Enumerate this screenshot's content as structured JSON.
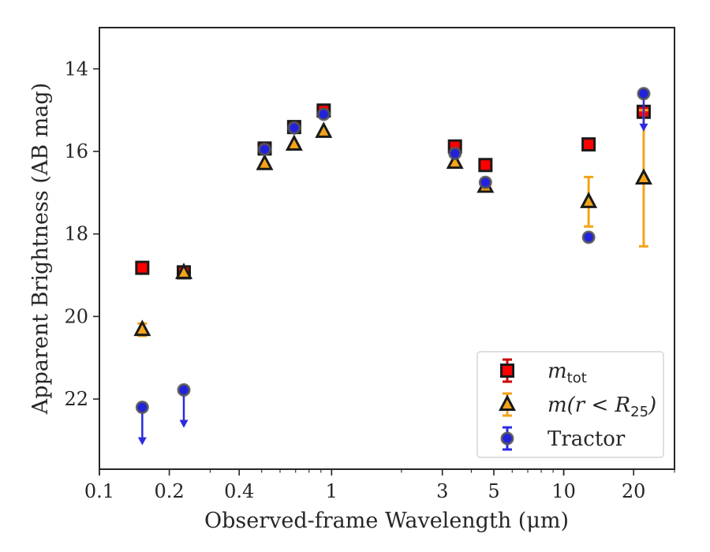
{
  "chart_data": {
    "type": "scatter",
    "title": "",
    "xlabel": "Observed-frame Wavelength (μm)",
    "ylabel": "Apparent Brightness (AB mag)",
    "xscale": "log",
    "xlim": [
      0.1,
      30
    ],
    "ylim": [
      23.7,
      13.0
    ],
    "y_inverted": true,
    "grid": false,
    "legend_position": "lower-right",
    "x_ticks": [
      {
        "value": 0.1,
        "label": "0.1"
      },
      {
        "value": 0.2,
        "label": "0.2"
      },
      {
        "value": 0.4,
        "label": "0.4"
      },
      {
        "value": 1,
        "label": "1"
      },
      {
        "value": 3,
        "label": "3"
      },
      {
        "value": 5,
        "label": "5"
      },
      {
        "value": 10,
        "label": "10"
      },
      {
        "value": 20,
        "label": "20"
      }
    ],
    "y_ticks": [
      {
        "value": 14,
        "label": "14"
      },
      {
        "value": 16,
        "label": "16"
      },
      {
        "value": 18,
        "label": "18"
      },
      {
        "value": 20,
        "label": "20"
      },
      {
        "value": 22,
        "label": "22"
      }
    ],
    "series": [
      {
        "name": "m_tot",
        "label_main": "m",
        "label_sub": "tot",
        "marker": "square",
        "color": "#ff0000",
        "edge_color": "#1a1a1a",
        "error_color": "#cc0000",
        "points": [
          {
            "x": 0.153,
            "y": 18.82
          },
          {
            "x": 0.231,
            "y": 18.93
          },
          {
            "x": 0.515,
            "y": 15.93
          },
          {
            "x": 0.69,
            "y": 15.41
          },
          {
            "x": 0.925,
            "y": 15.01
          },
          {
            "x": 3.4,
            "y": 15.88
          },
          {
            "x": 4.6,
            "y": 16.33
          },
          {
            "x": 12.8,
            "y": 15.83
          },
          {
            "x": 22.1,
            "y": 15.04
          }
        ]
      },
      {
        "name": "m(r < R25)",
        "label_main": "m(r < R",
        "label_sub": "25",
        "label_end": ")",
        "marker": "triangle",
        "color": "#f5a31a",
        "edge_color": "#1a1a1a",
        "error_color": "#f5a31a",
        "points": [
          {
            "x": 0.153,
            "y": 20.32,
            "err": 0.15
          },
          {
            "x": 0.231,
            "y": 18.94,
            "err": 0.0
          },
          {
            "x": 0.515,
            "y": 16.3,
            "err": 0.0
          },
          {
            "x": 0.69,
            "y": 15.83,
            "err": 0.0
          },
          {
            "x": 0.925,
            "y": 15.52,
            "err": 0.0
          },
          {
            "x": 3.4,
            "y": 16.27,
            "err": 0.0
          },
          {
            "x": 4.6,
            "y": 16.85,
            "err": 0.0
          },
          {
            "x": 12.8,
            "y": 17.22,
            "err": 0.6
          },
          {
            "x": 22.1,
            "y": 16.65,
            "err": 1.65
          }
        ]
      },
      {
        "name": "Tractor",
        "marker": "circle",
        "color": "#2222dd",
        "edge_color": "#555555",
        "error_color": "#2b2be0",
        "points": [
          {
            "x": 0.153,
            "y": 22.2,
            "upper_limit": true
          },
          {
            "x": 0.231,
            "y": 21.78,
            "upper_limit": true
          },
          {
            "x": 0.515,
            "y": 15.95
          },
          {
            "x": 0.69,
            "y": 15.43
          },
          {
            "x": 0.925,
            "y": 15.1
          },
          {
            "x": 3.4,
            "y": 16.05
          },
          {
            "x": 4.6,
            "y": 16.75
          },
          {
            "x": 12.8,
            "y": 18.08
          },
          {
            "x": 22.1,
            "y": 14.6,
            "upper_limit": true
          }
        ]
      }
    ]
  }
}
